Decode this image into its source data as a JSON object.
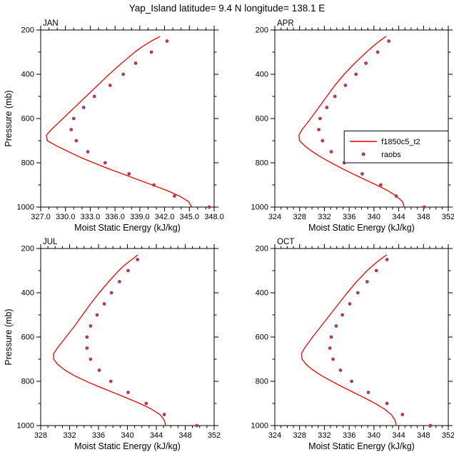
{
  "chart_data": {
    "type": "line",
    "title": "Yap_Island  latitude= 9.4 N longitude= 138.1 E",
    "xlabel": "Moist Static Energy (kJ/kg)",
    "ylabel": "Pressure (mb)",
    "grid": false,
    "colors": {
      "model_line": "#ee1111",
      "obs_dot": "#b03a60",
      "axis": "#000000",
      "background": "#ffffff"
    },
    "series_meta": {
      "model": {
        "name": "f1850c5_t2",
        "style": "line",
        "color": "#ee1111"
      },
      "obs": {
        "name": "raobs",
        "style": "dots",
        "color": "#b03a60"
      }
    },
    "legend": {
      "position": "inside APR panel, right-center",
      "entries": [
        {
          "series": "model",
          "label": "f1850c5_t2",
          "marker": "line"
        },
        {
          "series": "obs",
          "label": "raobs",
          "marker": "dot"
        }
      ]
    },
    "y_axis": {
      "label": "Pressure (mb)",
      "min": 200,
      "max": 1000,
      "inverted": true,
      "major_ticks": [
        200,
        400,
        600,
        800,
        1000
      ],
      "minor_ticks": [
        300,
        500,
        700,
        900
      ]
    },
    "panels": [
      {
        "label": "JAN",
        "x_min": 327,
        "x_max": 348,
        "x_tick_decimals": 1,
        "x_minor_step": 1,
        "x_ticks": [
          327,
          330,
          333,
          336,
          339,
          342,
          345,
          348
        ],
        "model_points": [
          [
            1000,
            345.3
          ],
          [
            975,
            344.9
          ],
          [
            950,
            343.8
          ],
          [
            925,
            342.3
          ],
          [
            900,
            340.5
          ],
          [
            875,
            338.7
          ],
          [
            850,
            336.9
          ],
          [
            825,
            335.1
          ],
          [
            800,
            333.4
          ],
          [
            775,
            331.8
          ],
          [
            750,
            330.4
          ],
          [
            725,
            329.0
          ],
          [
            700,
            327.8
          ],
          [
            675,
            327.7
          ],
          [
            650,
            328.3
          ],
          [
            600,
            329.7
          ],
          [
            550,
            331.1
          ],
          [
            500,
            332.5
          ],
          [
            450,
            333.9
          ],
          [
            400,
            335.3
          ],
          [
            350,
            336.8
          ],
          [
            300,
            338.4
          ],
          [
            275,
            339.3
          ],
          [
            250,
            340.4
          ],
          [
            230,
            341.4
          ]
        ],
        "obs_points": [
          [
            1000,
            347.4
          ],
          [
            950,
            343.2
          ],
          [
            900,
            340.7
          ],
          [
            850,
            337.7
          ],
          [
            800,
            334.8
          ],
          [
            750,
            332.7
          ],
          [
            700,
            331.3
          ],
          [
            650,
            330.7
          ],
          [
            600,
            331.0
          ],
          [
            550,
            332.2
          ],
          [
            500,
            333.5
          ],
          [
            450,
            335.4
          ],
          [
            400,
            337.0
          ],
          [
            350,
            338.5
          ],
          [
            300,
            340.4
          ],
          [
            250,
            342.3
          ]
        ]
      },
      {
        "label": "APR",
        "x_min": 324,
        "x_max": 352,
        "x_tick_decimals": 0,
        "x_minor_step": 1,
        "x_ticks": [
          324,
          328,
          332,
          336,
          340,
          344,
          348,
          352
        ],
        "model_points": [
          [
            1000,
            344.9
          ],
          [
            975,
            344.6
          ],
          [
            950,
            343.6
          ],
          [
            925,
            342.2
          ],
          [
            900,
            340.4
          ],
          [
            875,
            338.5
          ],
          [
            850,
            336.6
          ],
          [
            825,
            334.8
          ],
          [
            800,
            333.1
          ],
          [
            775,
            331.5
          ],
          [
            750,
            330.1
          ],
          [
            725,
            328.9
          ],
          [
            700,
            328.0
          ],
          [
            675,
            327.9
          ],
          [
            650,
            328.4
          ],
          [
            600,
            329.8
          ],
          [
            550,
            331.1
          ],
          [
            500,
            332.4
          ],
          [
            450,
            333.7
          ],
          [
            400,
            335.2
          ],
          [
            350,
            336.9
          ],
          [
            300,
            338.8
          ],
          [
            275,
            339.8
          ],
          [
            250,
            340.9
          ],
          [
            230,
            341.9
          ]
        ],
        "obs_points": [
          [
            1000,
            348.1
          ],
          [
            950,
            343.6
          ],
          [
            900,
            341.1
          ],
          [
            850,
            338.1
          ],
          [
            800,
            335.2
          ],
          [
            750,
            333.1
          ],
          [
            700,
            331.7
          ],
          [
            650,
            331.1
          ],
          [
            600,
            331.3
          ],
          [
            550,
            332.4
          ],
          [
            500,
            333.7
          ],
          [
            450,
            335.4
          ],
          [
            400,
            337.1
          ],
          [
            350,
            338.7
          ],
          [
            300,
            340.6
          ],
          [
            250,
            342.4
          ]
        ]
      },
      {
        "label": "JUL",
        "x_min": 328,
        "x_max": 352,
        "x_tick_decimals": 0,
        "x_minor_step": 1,
        "x_ticks": [
          328,
          332,
          336,
          340,
          344,
          348,
          352
        ],
        "model_points": [
          [
            1000,
            345.3
          ],
          [
            975,
            345.1
          ],
          [
            950,
            344.5
          ],
          [
            925,
            343.3
          ],
          [
            900,
            341.7
          ],
          [
            875,
            339.9
          ],
          [
            850,
            338.0
          ],
          [
            825,
            336.1
          ],
          [
            800,
            334.3
          ],
          [
            775,
            332.7
          ],
          [
            750,
            331.4
          ],
          [
            725,
            330.4
          ],
          [
            700,
            329.8
          ],
          [
            675,
            329.8
          ],
          [
            650,
            330.3
          ],
          [
            600,
            331.5
          ],
          [
            550,
            332.7
          ],
          [
            500,
            333.8
          ],
          [
            450,
            334.9
          ],
          [
            400,
            336.1
          ],
          [
            350,
            337.4
          ],
          [
            300,
            338.8
          ],
          [
            275,
            339.6
          ],
          [
            250,
            340.6
          ],
          [
            230,
            341.4
          ]
        ],
        "obs_points": [
          [
            1000,
            349.6
          ],
          [
            950,
            345.1
          ],
          [
            900,
            342.6
          ],
          [
            850,
            340.1
          ],
          [
            800,
            337.7
          ],
          [
            750,
            336.1
          ],
          [
            700,
            334.9
          ],
          [
            650,
            334.4
          ],
          [
            600,
            334.4
          ],
          [
            550,
            334.9
          ],
          [
            500,
            335.8
          ],
          [
            450,
            336.8
          ],
          [
            400,
            337.8
          ],
          [
            350,
            338.9
          ],
          [
            300,
            340.1
          ],
          [
            250,
            341.4
          ]
        ]
      },
      {
        "label": "OCT",
        "x_min": 324,
        "x_max": 352,
        "x_tick_decimals": 0,
        "x_minor_step": 1,
        "x_ticks": [
          324,
          328,
          332,
          336,
          340,
          344,
          348,
          352
        ],
        "model_points": [
          [
            1000,
            343.6
          ],
          [
            975,
            343.4
          ],
          [
            950,
            342.8
          ],
          [
            925,
            341.7
          ],
          [
            900,
            340.2
          ],
          [
            875,
            338.5
          ],
          [
            850,
            336.7
          ],
          [
            825,
            334.9
          ],
          [
            800,
            333.2
          ],
          [
            775,
            331.6
          ],
          [
            750,
            330.2
          ],
          [
            725,
            329.1
          ],
          [
            700,
            328.4
          ],
          [
            675,
            328.3
          ],
          [
            650,
            328.8
          ],
          [
            600,
            330.1
          ],
          [
            550,
            331.5
          ],
          [
            500,
            332.9
          ],
          [
            450,
            334.3
          ],
          [
            400,
            335.7
          ],
          [
            350,
            337.2
          ],
          [
            300,
            338.9
          ],
          [
            275,
            339.9
          ],
          [
            250,
            341.0
          ],
          [
            230,
            342.0
          ]
        ],
        "obs_points": [
          [
            1000,
            349.1
          ],
          [
            950,
            344.6
          ],
          [
            900,
            342.1
          ],
          [
            850,
            339.1
          ],
          [
            800,
            336.4
          ],
          [
            750,
            334.6
          ],
          [
            700,
            333.4
          ],
          [
            650,
            332.9
          ],
          [
            600,
            333.1
          ],
          [
            550,
            333.9
          ],
          [
            500,
            334.9
          ],
          [
            450,
            336.1
          ],
          [
            400,
            337.4
          ],
          [
            350,
            338.9
          ],
          [
            300,
            340.4
          ],
          [
            250,
            342.1
          ]
        ]
      }
    ]
  }
}
